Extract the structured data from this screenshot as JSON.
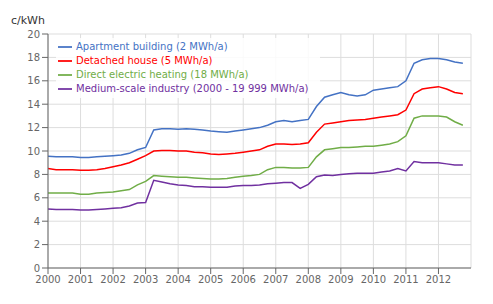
{
  "chart_data": {
    "type": "line",
    "ylabel": "c/kWh",
    "x": [
      2000.0,
      2000.25,
      2000.5,
      2000.75,
      2001.0,
      2001.25,
      2001.5,
      2001.75,
      2002.0,
      2002.25,
      2002.5,
      2002.75,
      2003.0,
      2003.25,
      2003.5,
      2003.75,
      2004.0,
      2004.25,
      2004.5,
      2004.75,
      2005.0,
      2005.25,
      2005.5,
      2005.75,
      2006.0,
      2006.25,
      2006.5,
      2006.75,
      2007.0,
      2007.25,
      2007.5,
      2007.75,
      2008.0,
      2008.25,
      2008.5,
      2008.75,
      2009.0,
      2009.25,
      2009.5,
      2009.75,
      2010.0,
      2010.25,
      2010.5,
      2010.75,
      2011.0,
      2011.25,
      2011.5,
      2011.75,
      2012.0,
      2012.25,
      2012.5,
      2012.75
    ],
    "series": [
      {
        "name": "Apartment building (2 MWh/a)",
        "color": "#4472C4",
        "values": [
          9.55,
          9.5,
          9.5,
          9.5,
          9.45,
          9.45,
          9.5,
          9.55,
          9.6,
          9.65,
          9.8,
          10.1,
          10.3,
          11.8,
          11.9,
          11.9,
          11.85,
          11.9,
          11.85,
          11.8,
          11.7,
          11.65,
          11.6,
          11.7,
          11.8,
          11.9,
          12.0,
          12.2,
          12.5,
          12.6,
          12.5,
          12.6,
          12.7,
          13.8,
          14.6,
          14.8,
          15.0,
          14.8,
          14.7,
          14.8,
          15.2,
          15.3,
          15.4,
          15.5,
          16.0,
          17.5,
          17.8,
          17.9,
          17.9,
          17.8,
          17.6,
          17.5
        ]
      },
      {
        "name": "Detached house (5 MWh/a)",
        "color": "#FF0000",
        "values": [
          8.5,
          8.4,
          8.4,
          8.4,
          8.35,
          8.35,
          8.4,
          8.5,
          8.65,
          8.8,
          9.0,
          9.3,
          9.6,
          10.0,
          10.05,
          10.05,
          10.0,
          10.0,
          9.9,
          9.85,
          9.75,
          9.7,
          9.75,
          9.8,
          9.9,
          10.0,
          10.1,
          10.4,
          10.6,
          10.6,
          10.55,
          10.6,
          10.7,
          11.6,
          12.3,
          12.4,
          12.5,
          12.6,
          12.65,
          12.7,
          12.8,
          12.9,
          13.0,
          13.1,
          13.5,
          14.9,
          15.3,
          15.4,
          15.5,
          15.3,
          15.0,
          14.9
        ]
      },
      {
        "name": "Direct electric heating (18 MWh/a)",
        "color": "#70AD47",
        "values": [
          6.4,
          6.4,
          6.4,
          6.4,
          6.3,
          6.3,
          6.4,
          6.45,
          6.5,
          6.6,
          6.7,
          7.1,
          7.4,
          7.9,
          7.85,
          7.8,
          7.75,
          7.75,
          7.7,
          7.65,
          7.6,
          7.6,
          7.65,
          7.75,
          7.85,
          7.9,
          8.0,
          8.4,
          8.6,
          8.6,
          8.55,
          8.55,
          8.6,
          9.5,
          10.1,
          10.2,
          10.3,
          10.3,
          10.35,
          10.4,
          10.4,
          10.5,
          10.6,
          10.8,
          11.3,
          12.8,
          13.0,
          13.0,
          13.0,
          12.9,
          12.5,
          12.2
        ]
      },
      {
        "name": "Medium-scale industry (2000 - 19 999 MWh/a)",
        "color": "#7030A0",
        "values": [
          5.05,
          5.0,
          5.0,
          5.0,
          4.95,
          4.95,
          5.0,
          5.05,
          5.1,
          5.15,
          5.3,
          5.55,
          5.6,
          7.5,
          7.35,
          7.2,
          7.1,
          7.05,
          6.95,
          6.95,
          6.9,
          6.9,
          6.9,
          7.0,
          7.05,
          7.05,
          7.1,
          7.2,
          7.25,
          7.3,
          7.3,
          6.8,
          7.15,
          7.8,
          7.95,
          7.9,
          8.0,
          8.05,
          8.1,
          8.1,
          8.1,
          8.2,
          8.3,
          8.5,
          8.3,
          9.1,
          9.0,
          9.0,
          9.0,
          8.9,
          8.8,
          8.8
        ]
      }
    ],
    "xlim": [
      2000,
      2013
    ],
    "xticks": [
      2000,
      2001,
      2002,
      2003,
      2004,
      2005,
      2006,
      2007,
      2008,
      2009,
      2010,
      2011,
      2012
    ],
    "ylim": [
      0,
      20
    ],
    "yticks": [
      0,
      2,
      4,
      6,
      8,
      10,
      12,
      14,
      16,
      18,
      20
    ],
    "grid": true,
    "legend": "upper left"
  }
}
